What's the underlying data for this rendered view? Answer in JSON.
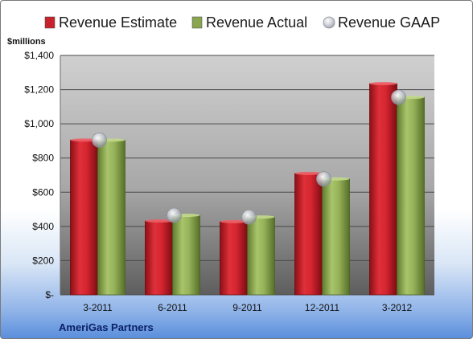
{
  "chart_data": {
    "type": "bar",
    "title": "",
    "ylabel": "$millions",
    "xlabel": "",
    "footer": "AmeriGas Partners",
    "categories": [
      "3-2011",
      "6-2011",
      "9-2011",
      "12-2011",
      "3-2012"
    ],
    "ylim": [
      0,
      1400
    ],
    "yticks": [
      0,
      200,
      400,
      600,
      800,
      1000,
      1200,
      1400
    ],
    "ytick_labels": [
      "$-",
      "$200",
      "$400",
      "$600",
      "$800",
      "$1,000",
      "$1,200",
      "$1,400"
    ],
    "grid": true,
    "legend_position": "top",
    "series": [
      {
        "name": "Revenue Estimate",
        "type": "bar",
        "color": "#c0202a",
        "values": [
          905,
          432,
          428,
          710,
          1235
        ]
      },
      {
        "name": "Revenue Actual",
        "type": "bar",
        "color": "#8aa552",
        "values": [
          905,
          465,
          455,
          678,
          1155
        ]
      },
      {
        "name": "Revenue GAAP",
        "type": "marker",
        "color": "#b8bcc4",
        "values": [
          905,
          465,
          455,
          678,
          1155
        ]
      }
    ]
  }
}
